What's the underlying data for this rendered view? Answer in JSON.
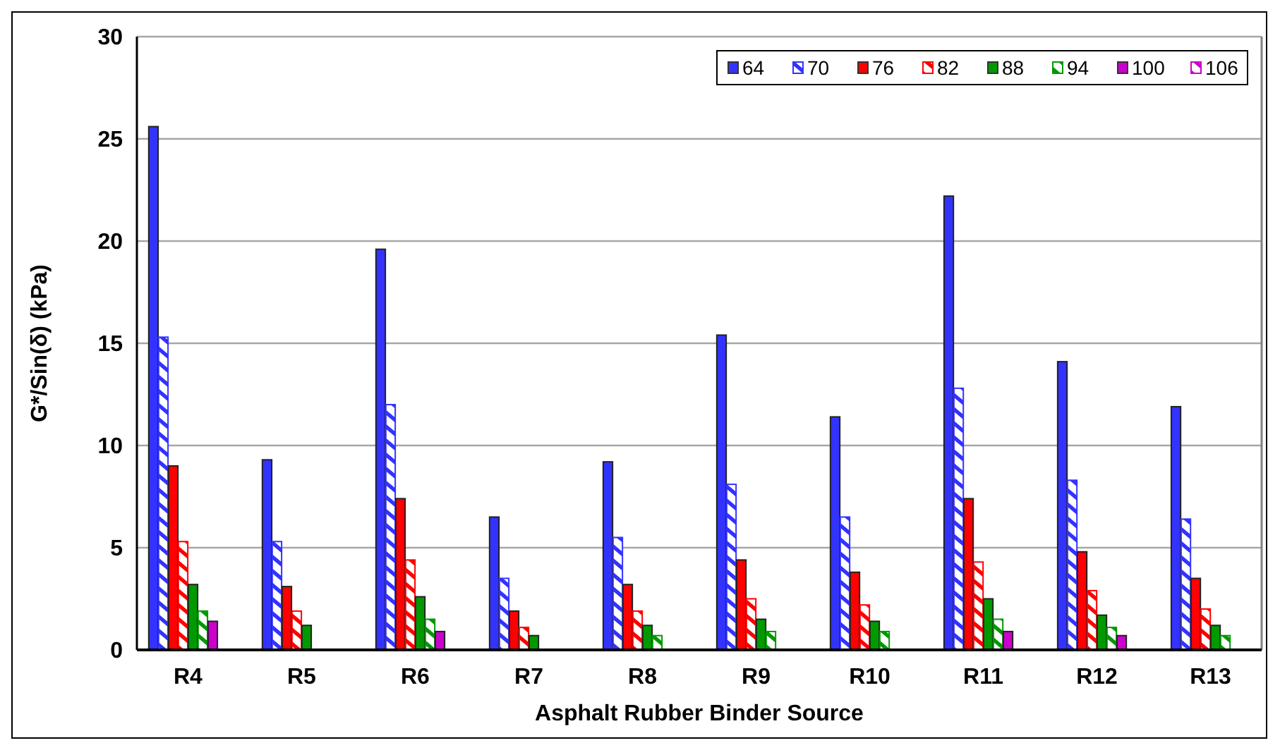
{
  "chart_data": {
    "type": "bar",
    "xlabel": "Asphalt Rubber Binder Source",
    "ylabel": "G*/Sin(δ) (kPa)",
    "categories": [
      "R4",
      "R5",
      "R6",
      "R7",
      "R8",
      "R9",
      "R10",
      "R11",
      "R12",
      "R13"
    ],
    "ylim": [
      0,
      30
    ],
    "yticks": [
      0,
      5,
      10,
      15,
      20,
      25,
      30
    ],
    "grid": "y",
    "legend": "top right",
    "series": [
      {
        "name": "64",
        "color": "#3333ff",
        "values": [
          25.6,
          9.3,
          19.6,
          6.5,
          9.2,
          15.4,
          11.4,
          22.2,
          14.1,
          11.9
        ]
      },
      {
        "name": "70",
        "color": "#3333ff",
        "values": [
          15.3,
          5.3,
          12.0,
          3.5,
          5.5,
          8.1,
          6.5,
          12.8,
          8.3,
          6.4
        ]
      },
      {
        "name": "76",
        "color": "#ff0000",
        "values": [
          9.0,
          3.1,
          7.4,
          1.9,
          3.2,
          4.4,
          3.8,
          7.4,
          4.8,
          3.5
        ]
      },
      {
        "name": "82",
        "color": "#ff0000",
        "values": [
          5.3,
          1.9,
          4.4,
          1.1,
          1.9,
          2.5,
          2.2,
          4.3,
          2.9,
          2.0
        ]
      },
      {
        "name": "88",
        "color": "#009900",
        "values": [
          3.2,
          1.2,
          2.6,
          0.7,
          1.2,
          1.5,
          1.4,
          2.5,
          1.7,
          1.2
        ]
      },
      {
        "name": "94",
        "color": "#009900",
        "values": [
          1.9,
          null,
          1.5,
          null,
          0.7,
          0.9,
          0.9,
          1.5,
          1.1,
          0.7
        ]
      },
      {
        "name": "100",
        "color": "#cc00cc",
        "values": [
          1.4,
          null,
          0.9,
          null,
          null,
          null,
          null,
          0.9,
          0.7,
          null
        ]
      },
      {
        "name": "106",
        "color": "#cc00cc",
        "values": [
          null,
          null,
          null,
          null,
          null,
          null,
          null,
          null,
          null,
          null
        ]
      }
    ]
  }
}
